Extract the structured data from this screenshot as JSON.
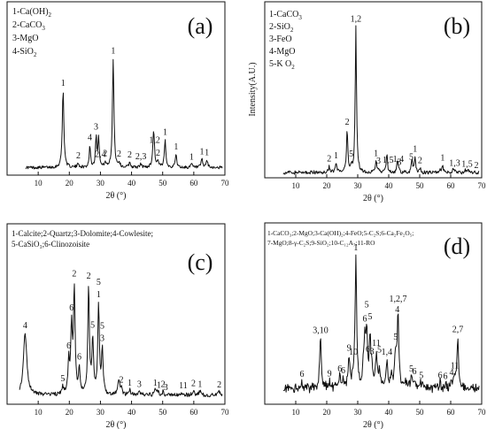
{
  "chart_data": [
    {
      "panel": "(a)",
      "type": "line",
      "xlabel": "2θ (°)",
      "ylabel": "",
      "xlim": [
        0,
        70
      ],
      "xticks": [
        10,
        20,
        30,
        40,
        50,
        60,
        70
      ],
      "legend": [
        "1-Ca(OH)",
        "2-CaCO",
        "3-MgO",
        "4-SiO"
      ],
      "legend_subscripts": [
        "2",
        "3",
        "",
        "2"
      ],
      "baseline": 0.09,
      "peaks": [
        {
          "x": 18.0,
          "h": 0.92,
          "w": 0.3
        },
        {
          "x": 22.9,
          "h": 0.05,
          "w": 0.3
        },
        {
          "x": 26.6,
          "h": 0.26,
          "w": 0.25
        },
        {
          "x": 28.6,
          "h": 0.36,
          "w": 0.25
        },
        {
          "x": 29.4,
          "h": 0.36,
          "w": 0.25
        },
        {
          "x": 31.5,
          "h": 0.06,
          "w": 0.25
        },
        {
          "x": 34.1,
          "h": 1.3,
          "w": 0.28
        },
        {
          "x": 36.0,
          "h": 0.05,
          "w": 0.3
        },
        {
          "x": 39.4,
          "h": 0.06,
          "w": 0.3
        },
        {
          "x": 43.0,
          "h": 0.04,
          "w": 0.3
        },
        {
          "x": 47.1,
          "h": 0.44,
          "w": 0.32
        },
        {
          "x": 48.5,
          "h": 0.06,
          "w": 0.3
        },
        {
          "x": 50.8,
          "h": 0.33,
          "w": 0.28
        },
        {
          "x": 54.3,
          "h": 0.16,
          "w": 0.28
        },
        {
          "x": 59.3,
          "h": 0.04,
          "w": 0.3
        },
        {
          "x": 62.6,
          "h": 0.1,
          "w": 0.28
        },
        {
          "x": 64.2,
          "h": 0.09,
          "w": 0.28
        }
      ],
      "peak_labels": [
        {
          "x": 18.0,
          "text": "1"
        },
        {
          "x": 22.9,
          "text": "2"
        },
        {
          "x": 26.6,
          "text": "4"
        },
        {
          "x": 28.6,
          "text": "3"
        },
        {
          "x": 30.0,
          "text": "2,4"
        },
        {
          "x": 31.5,
          "text": "2"
        },
        {
          "x": 34.1,
          "text": "1"
        },
        {
          "x": 36.0,
          "text": "2"
        },
        {
          "x": 39.4,
          "text": "2"
        },
        {
          "x": 43.0,
          "text": "2,3"
        },
        {
          "x": 47.4,
          "text": "1,2"
        },
        {
          "x": 48.5,
          "text": "2"
        },
        {
          "x": 50.8,
          "text": "1"
        },
        {
          "x": 54.3,
          "text": "1"
        },
        {
          "x": 59.3,
          "text": "1"
        },
        {
          "x": 62.6,
          "text": "1"
        },
        {
          "x": 64.2,
          "text": "1"
        }
      ]
    },
    {
      "panel": "(b)",
      "type": "line",
      "xlabel": "2θ (°)",
      "ylabel": "Intensity(A.U.)",
      "xlim": [
        0,
        70
      ],
      "xticks": [
        10,
        20,
        30,
        40,
        50,
        60,
        70
      ],
      "legend": [
        "1-CaCO",
        "2-SiO",
        "3-FeO",
        "4-MgO",
        "5-K O"
      ],
      "legend_subscripts": [
        "3",
        "2",
        "",
        "",
        "2"
      ],
      "baseline": 0.05,
      "peaks": [
        {
          "x": 20.8,
          "h": 0.06,
          "w": 0.25
        },
        {
          "x": 23.0,
          "h": 0.09,
          "w": 0.25
        },
        {
          "x": 26.6,
          "h": 0.4,
          "w": 0.25
        },
        {
          "x": 27.9,
          "h": 0.06,
          "w": 0.25
        },
        {
          "x": 29.4,
          "h": 1.4,
          "w": 0.25
        },
        {
          "x": 35.9,
          "h": 0.11,
          "w": 0.25
        },
        {
          "x": 36.7,
          "h": 0.03,
          "w": 0.25
        },
        {
          "x": 39.4,
          "h": 0.18,
          "w": 0.25
        },
        {
          "x": 42.8,
          "h": 0.1,
          "w": 0.25
        },
        {
          "x": 43.2,
          "h": 0.02,
          "w": 0.25
        },
        {
          "x": 47.5,
          "h": 0.12,
          "w": 0.25
        },
        {
          "x": 48.5,
          "h": 0.15,
          "w": 0.25
        },
        {
          "x": 50.1,
          "h": 0.04,
          "w": 0.25
        },
        {
          "x": 56.6,
          "h": 0.03,
          "w": 0.25
        },
        {
          "x": 57.4,
          "h": 0.07,
          "w": 0.25
        },
        {
          "x": 60.7,
          "h": 0.03,
          "w": 0.25
        },
        {
          "x": 61.4,
          "h": 0.02,
          "w": 0.25
        },
        {
          "x": 64.7,
          "h": 0.02,
          "w": 0.25
        },
        {
          "x": 65.6,
          "h": 0.02,
          "w": 0.25
        }
      ],
      "peak_labels": [
        {
          "x": 20.8,
          "text": "2"
        },
        {
          "x": 23.0,
          "text": "1"
        },
        {
          "x": 26.6,
          "text": "2"
        },
        {
          "x": 27.9,
          "text": "5"
        },
        {
          "x": 29.4,
          "text": "1,2"
        },
        {
          "x": 35.9,
          "text": "1"
        },
        {
          "x": 36.7,
          "text": "3"
        },
        {
          "x": 39.8,
          "text": "1,5"
        },
        {
          "x": 43.1,
          "text": "1,4"
        },
        {
          "x": 43.4,
          "text": "3"
        },
        {
          "x": 47.3,
          "text": "5"
        },
        {
          "x": 48.5,
          "text": "1"
        },
        {
          "x": 50.1,
          "text": "2"
        },
        {
          "x": 57.4,
          "text": "1"
        },
        {
          "x": 61.3,
          "text": "1,3"
        },
        {
          "x": 65.3,
          "text": "1,5"
        },
        {
          "x": 68.3,
          "text": "2"
        }
      ]
    },
    {
      "panel": "(c)",
      "type": "line",
      "xlabel": "2θ (°)",
      "ylabel": "",
      "xlim": [
        0,
        70
      ],
      "xticks": [
        10,
        20,
        30,
        40,
        50,
        60,
        70
      ],
      "legend": [
        "1-Calcite;2-Quartz;3-Dolomite;4-Cowlesite;",
        "5-CaSiO₃;6-Clinozoisite"
      ],
      "baseline": 0.08,
      "peaks": [
        {
          "x": 5.8,
          "h": 0.55,
          "w": 0.65
        },
        {
          "x": 17.9,
          "h": 0.06,
          "w": 0.3
        },
        {
          "x": 19.8,
          "h": 0.28,
          "w": 0.3
        },
        {
          "x": 20.7,
          "h": 0.58,
          "w": 0.3
        },
        {
          "x": 21.6,
          "h": 0.93,
          "w": 0.3
        },
        {
          "x": 23.2,
          "h": 0.22,
          "w": 0.3
        },
        {
          "x": 26.2,
          "h": 0.95,
          "w": 0.3
        },
        {
          "x": 27.5,
          "h": 0.48,
          "w": 0.3
        },
        {
          "x": 29.4,
          "h": 0.78,
          "w": 0.3
        },
        {
          "x": 30.6,
          "h": 0.38,
          "w": 0.3
        },
        {
          "x": 35.9,
          "h": 0.12,
          "w": 0.35
        },
        {
          "x": 36.8,
          "h": 0.05,
          "w": 0.35
        },
        {
          "x": 39.4,
          "h": 0.04,
          "w": 0.35
        },
        {
          "x": 42.5,
          "h": 0.03,
          "w": 0.35
        },
        {
          "x": 47.6,
          "h": 0.04,
          "w": 0.35
        },
        {
          "x": 48.5,
          "h": 0.03,
          "w": 0.35
        },
        {
          "x": 50.1,
          "h": 0.03,
          "w": 0.35
        },
        {
          "x": 56.6,
          "h": 0.02,
          "w": 0.35
        },
        {
          "x": 59.9,
          "h": 0.04,
          "w": 0.35
        },
        {
          "x": 62.0,
          "h": 0.03,
          "w": 0.35
        },
        {
          "x": 68.2,
          "h": 0.03,
          "w": 0.35
        }
      ],
      "peak_labels": [
        {
          "x": 5.8,
          "text": "4"
        },
        {
          "x": 17.9,
          "text": "5"
        },
        {
          "x": 19.8,
          "text": "6"
        },
        {
          "x": 20.7,
          "text": "6"
        },
        {
          "x": 21.6,
          "text": "2"
        },
        {
          "x": 23.2,
          "text": "6"
        },
        {
          "x": 26.2,
          "text": "2"
        },
        {
          "x": 27.5,
          "text": "5"
        },
        {
          "x": 29.4,
          "text": "5"
        },
        {
          "x": 29.4,
          "text": "1"
        },
        {
          "x": 30.6,
          "text": "5"
        },
        {
          "x": 30.6,
          "text": "3"
        },
        {
          "x": 36.7,
          "text": "2"
        },
        {
          "x": 39.4,
          "text": "1"
        },
        {
          "x": 42.5,
          "text": "3"
        },
        {
          "x": 47.6,
          "text": "1"
        },
        {
          "x": 48.8,
          "text": "1"
        },
        {
          "x": 50.1,
          "text": "2"
        },
        {
          "x": 51.0,
          "text": "3"
        },
        {
          "x": 56.6,
          "text": "11"
        },
        {
          "x": 59.9,
          "text": "2"
        },
        {
          "x": 62.0,
          "text": "1"
        },
        {
          "x": 68.2,
          "text": "2"
        }
      ]
    },
    {
      "panel": "(d)",
      "type": "line",
      "xlabel": "2θ (°)",
      "ylabel": "",
      "xlim": [
        0,
        70
      ],
      "xticks": [
        10,
        20,
        30,
        40,
        50,
        60,
        70
      ],
      "legend": [
        "1-CaCO₃;2-MgO;3-Ca(OH)₂;4-FeO;5-C₂S;6-Ca₂Fe₂O₅;",
        "7-MgO;8-γ-C₂S;9-SiO₂;10-C₁₂A₇;11-RO"
      ],
      "baseline": 0.12,
      "peaks": [
        {
          "x": 12.0,
          "h": 0.05,
          "w": 0.3
        },
        {
          "x": 18.0,
          "h": 0.38,
          "w": 0.3
        },
        {
          "x": 20.9,
          "h": 0.05,
          "w": 0.3
        },
        {
          "x": 24.2,
          "h": 0.08,
          "w": 0.3
        },
        {
          "x": 25.3,
          "h": 0.06,
          "w": 0.3
        },
        {
          "x": 27.2,
          "h": 0.22,
          "w": 0.3
        },
        {
          "x": 28.6,
          "h": 0.08,
          "w": 0.3
        },
        {
          "x": 29.4,
          "h": 0.98,
          "w": 0.3
        },
        {
          "x": 31.8,
          "h": 0.14,
          "w": 0.3
        },
        {
          "x": 32.3,
          "h": 0.33,
          "w": 0.3
        },
        {
          "x": 32.9,
          "h": 0.38,
          "w": 0.3
        },
        {
          "x": 34.0,
          "h": 0.33,
          "w": 0.3
        },
        {
          "x": 34.6,
          "h": 0.12,
          "w": 0.3
        },
        {
          "x": 36.0,
          "h": 0.25,
          "w": 0.3
        },
        {
          "x": 37.0,
          "h": 0.12,
          "w": 0.3
        },
        {
          "x": 39.4,
          "h": 0.2,
          "w": 0.3
        },
        {
          "x": 41.0,
          "h": 0.1,
          "w": 0.3
        },
        {
          "x": 42.2,
          "h": 0.25,
          "w": 0.3
        },
        {
          "x": 43.0,
          "h": 0.58,
          "w": 0.3
        },
        {
          "x": 45.3,
          "h": 0.05,
          "w": 0.3
        },
        {
          "x": 47.3,
          "h": 0.08,
          "w": 0.3
        },
        {
          "x": 48.3,
          "h": 0.06,
          "w": 0.3
        },
        {
          "x": 50.5,
          "h": 0.04,
          "w": 0.3
        },
        {
          "x": 56.6,
          "h": 0.04,
          "w": 0.3
        },
        {
          "x": 58.3,
          "h": 0.03,
          "w": 0.3
        },
        {
          "x": 60.3,
          "h": 0.05,
          "w": 0.3
        },
        {
          "x": 61.3,
          "h": 0.08,
          "w": 0.3
        },
        {
          "x": 62.3,
          "h": 0.38,
          "w": 0.3
        }
      ],
      "peak_labels": [
        {
          "x": 12.0,
          "text": "6"
        },
        {
          "x": 18.0,
          "text": "3,10"
        },
        {
          "x": 20.9,
          "text": "9"
        },
        {
          "x": 24.2,
          "text": "6"
        },
        {
          "x": 25.3,
          "text": "6"
        },
        {
          "x": 27.2,
          "text": "9"
        },
        {
          "x": 28.6,
          "text": "10"
        },
        {
          "x": 29.4,
          "text": "1"
        },
        {
          "x": 32.3,
          "text": "6"
        },
        {
          "x": 32.9,
          "text": "5"
        },
        {
          "x": 33.3,
          "text": "6"
        },
        {
          "x": 34.0,
          "text": "5"
        },
        {
          "x": 34.6,
          "text": "3"
        },
        {
          "x": 36.0,
          "text": "11"
        },
        {
          "x": 37.0,
          "text": "5"
        },
        {
          "x": 39.4,
          "text": "1,4"
        },
        {
          "x": 42.2,
          "text": "5"
        },
        {
          "x": 42.8,
          "text": "4"
        },
        {
          "x": 43.0,
          "text": "1,2,7"
        },
        {
          "x": 47.3,
          "text": "5"
        },
        {
          "x": 48.3,
          "text": "6"
        },
        {
          "x": 50.5,
          "text": "5"
        },
        {
          "x": 56.6,
          "text": "6"
        },
        {
          "x": 58.3,
          "text": "6"
        },
        {
          "x": 60.3,
          "text": "4"
        },
        {
          "x": 61.3,
          "text": "11"
        },
        {
          "x": 62.3,
          "text": "2,7"
        }
      ]
    }
  ]
}
